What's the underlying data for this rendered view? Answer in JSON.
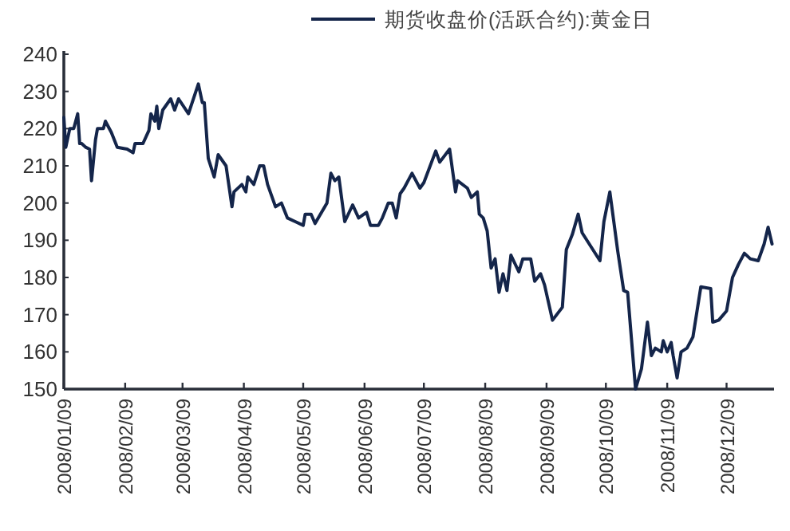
{
  "chart_data": {
    "type": "line",
    "legend": "top",
    "marker": "none",
    "line_style": "solid",
    "xlim": [
      "2008-01-09",
      "2009-01-02"
    ],
    "xticks": [
      {
        "value": "2008-01-09",
        "label": "2008/01/09"
      },
      {
        "value": "2008-02-09",
        "label": "2008/02/09"
      },
      {
        "value": "2008-03-09",
        "label": "2008/03/09"
      },
      {
        "value": "2008-04-09",
        "label": "2008/04/09"
      },
      {
        "value": "2008-05-09",
        "label": "2008/05/09"
      },
      {
        "value": "2008-06-09",
        "label": "2008/06/09"
      },
      {
        "value": "2008-07-09",
        "label": "2008/07/09"
      },
      {
        "value": "2008-08-09",
        "label": "2008/08/09"
      },
      {
        "value": "2008-09-09",
        "label": "2008/09/09"
      },
      {
        "value": "2008-10-09",
        "label": "2008/10/09"
      },
      {
        "value": "2008-11-09",
        "label": "2008/11/09"
      },
      {
        "value": "2008-12-09",
        "label": "2008/12/09"
      }
    ],
    "ylim": [
      150,
      240
    ],
    "yticks": [
      150,
      160,
      170,
      180,
      190,
      200,
      210,
      220,
      230,
      240
    ],
    "series": [
      {
        "name": "期货收盘价(活跃合约):黄金日",
        "color": "#14254a",
        "x": [
          "2008-01-09",
          "2008-01-10",
          "2008-01-12",
          "2008-01-14",
          "2008-01-16",
          "2008-01-17",
          "2008-01-18",
          "2008-01-20",
          "2008-01-22",
          "2008-01-23",
          "2008-01-25",
          "2008-01-26",
          "2008-01-29",
          "2008-01-30",
          "2008-02-02",
          "2008-02-05",
          "2008-02-10",
          "2008-02-13",
          "2008-02-14",
          "2008-02-18",
          "2008-02-21",
          "2008-02-22",
          "2008-02-24",
          "2008-02-25",
          "2008-02-26",
          "2008-02-28",
          "2008-03-03",
          "2008-03-05",
          "2008-03-07",
          "2008-03-12",
          "2008-03-17",
          "2008-03-19",
          "2008-03-20",
          "2008-03-22",
          "2008-03-25",
          "2008-03-27",
          "2008-03-31",
          "2008-04-03",
          "2008-04-04",
          "2008-04-08",
          "2008-04-10",
          "2008-04-11",
          "2008-04-14",
          "2008-04-17",
          "2008-04-19",
          "2008-04-21",
          "2008-04-25",
          "2008-04-28",
          "2008-05-01",
          "2008-05-05",
          "2008-05-09",
          "2008-05-10",
          "2008-05-13",
          "2008-05-15",
          "2008-05-21",
          "2008-05-23",
          "2008-05-25",
          "2008-05-27",
          "2008-05-30",
          "2008-06-03",
          "2008-06-06",
          "2008-06-10",
          "2008-06-12",
          "2008-06-16",
          "2008-06-18",
          "2008-06-21",
          "2008-06-23",
          "2008-06-25",
          "2008-06-27",
          "2008-06-29",
          "2008-07-03",
          "2008-07-07",
          "2008-07-09",
          "2008-07-15",
          "2008-07-17",
          "2008-07-22",
          "2008-07-25",
          "2008-07-26",
          "2008-07-31",
          "2008-08-02",
          "2008-08-05",
          "2008-08-06",
          "2008-08-08",
          "2008-08-10",
          "2008-08-12",
          "2008-08-14",
          "2008-08-16",
          "2008-08-18",
          "2008-08-20",
          "2008-08-22",
          "2008-08-26",
          "2008-08-28",
          "2008-09-01",
          "2008-09-03",
          "2008-09-06",
          "2008-09-08",
          "2008-09-12",
          "2008-09-17",
          "2008-09-19",
          "2008-09-22",
          "2008-09-25",
          "2008-09-27",
          "2008-10-06",
          "2008-10-08",
          "2008-10-11",
          "2008-10-15",
          "2008-10-18",
          "2008-10-20",
          "2008-10-24",
          "2008-10-27",
          "2008-10-30",
          "2008-11-01",
          "2008-11-03",
          "2008-11-06",
          "2008-11-07",
          "2008-11-09",
          "2008-11-11",
          "2008-11-12",
          "2008-11-14",
          "2008-11-16",
          "2008-11-19",
          "2008-11-22",
          "2008-11-26",
          "2008-12-01",
          "2008-12-02",
          "2008-12-05",
          "2008-12-09",
          "2008-12-12",
          "2008-12-15",
          "2008-12-18",
          "2008-12-21",
          "2008-12-25",
          "2008-12-28",
          "2008-12-30",
          "2009-01-01"
        ],
        "values": [
          223,
          215,
          220,
          220,
          224,
          216,
          216,
          215,
          214.5,
          206,
          217,
          220,
          220,
          222,
          219,
          215,
          214.5,
          213.5,
          216,
          216,
          219.5,
          224,
          222,
          226,
          220,
          225,
          228,
          225,
          228,
          224,
          232,
          227,
          227,
          212,
          207,
          213,
          210,
          199,
          203,
          205,
          203,
          207,
          205,
          210,
          210,
          205,
          199,
          200,
          196,
          195,
          194,
          197,
          197,
          194.5,
          200,
          208,
          206,
          207,
          195,
          199.5,
          196,
          197.5,
          194,
          194,
          196,
          200,
          200,
          196,
          202.5,
          204,
          208,
          204,
          205.5,
          214,
          211,
          214.5,
          203,
          206,
          204,
          201.5,
          203,
          197,
          196,
          192.5,
          182.5,
          185,
          176,
          181,
          176.5,
          186,
          181.5,
          185,
          185,
          179,
          181,
          178,
          168.5,
          172,
          187.5,
          191.5,
          197,
          192,
          184.5,
          195,
          203,
          187,
          176.5,
          176,
          150,
          155.5,
          168,
          159,
          161,
          160,
          163,
          160,
          162.5,
          159,
          153,
          160,
          161,
          164,
          177.5,
          177,
          168,
          168.5,
          171,
          180,
          183.5,
          186.5,
          185,
          184.5,
          189,
          193.5,
          189
        ]
      }
    ]
  }
}
